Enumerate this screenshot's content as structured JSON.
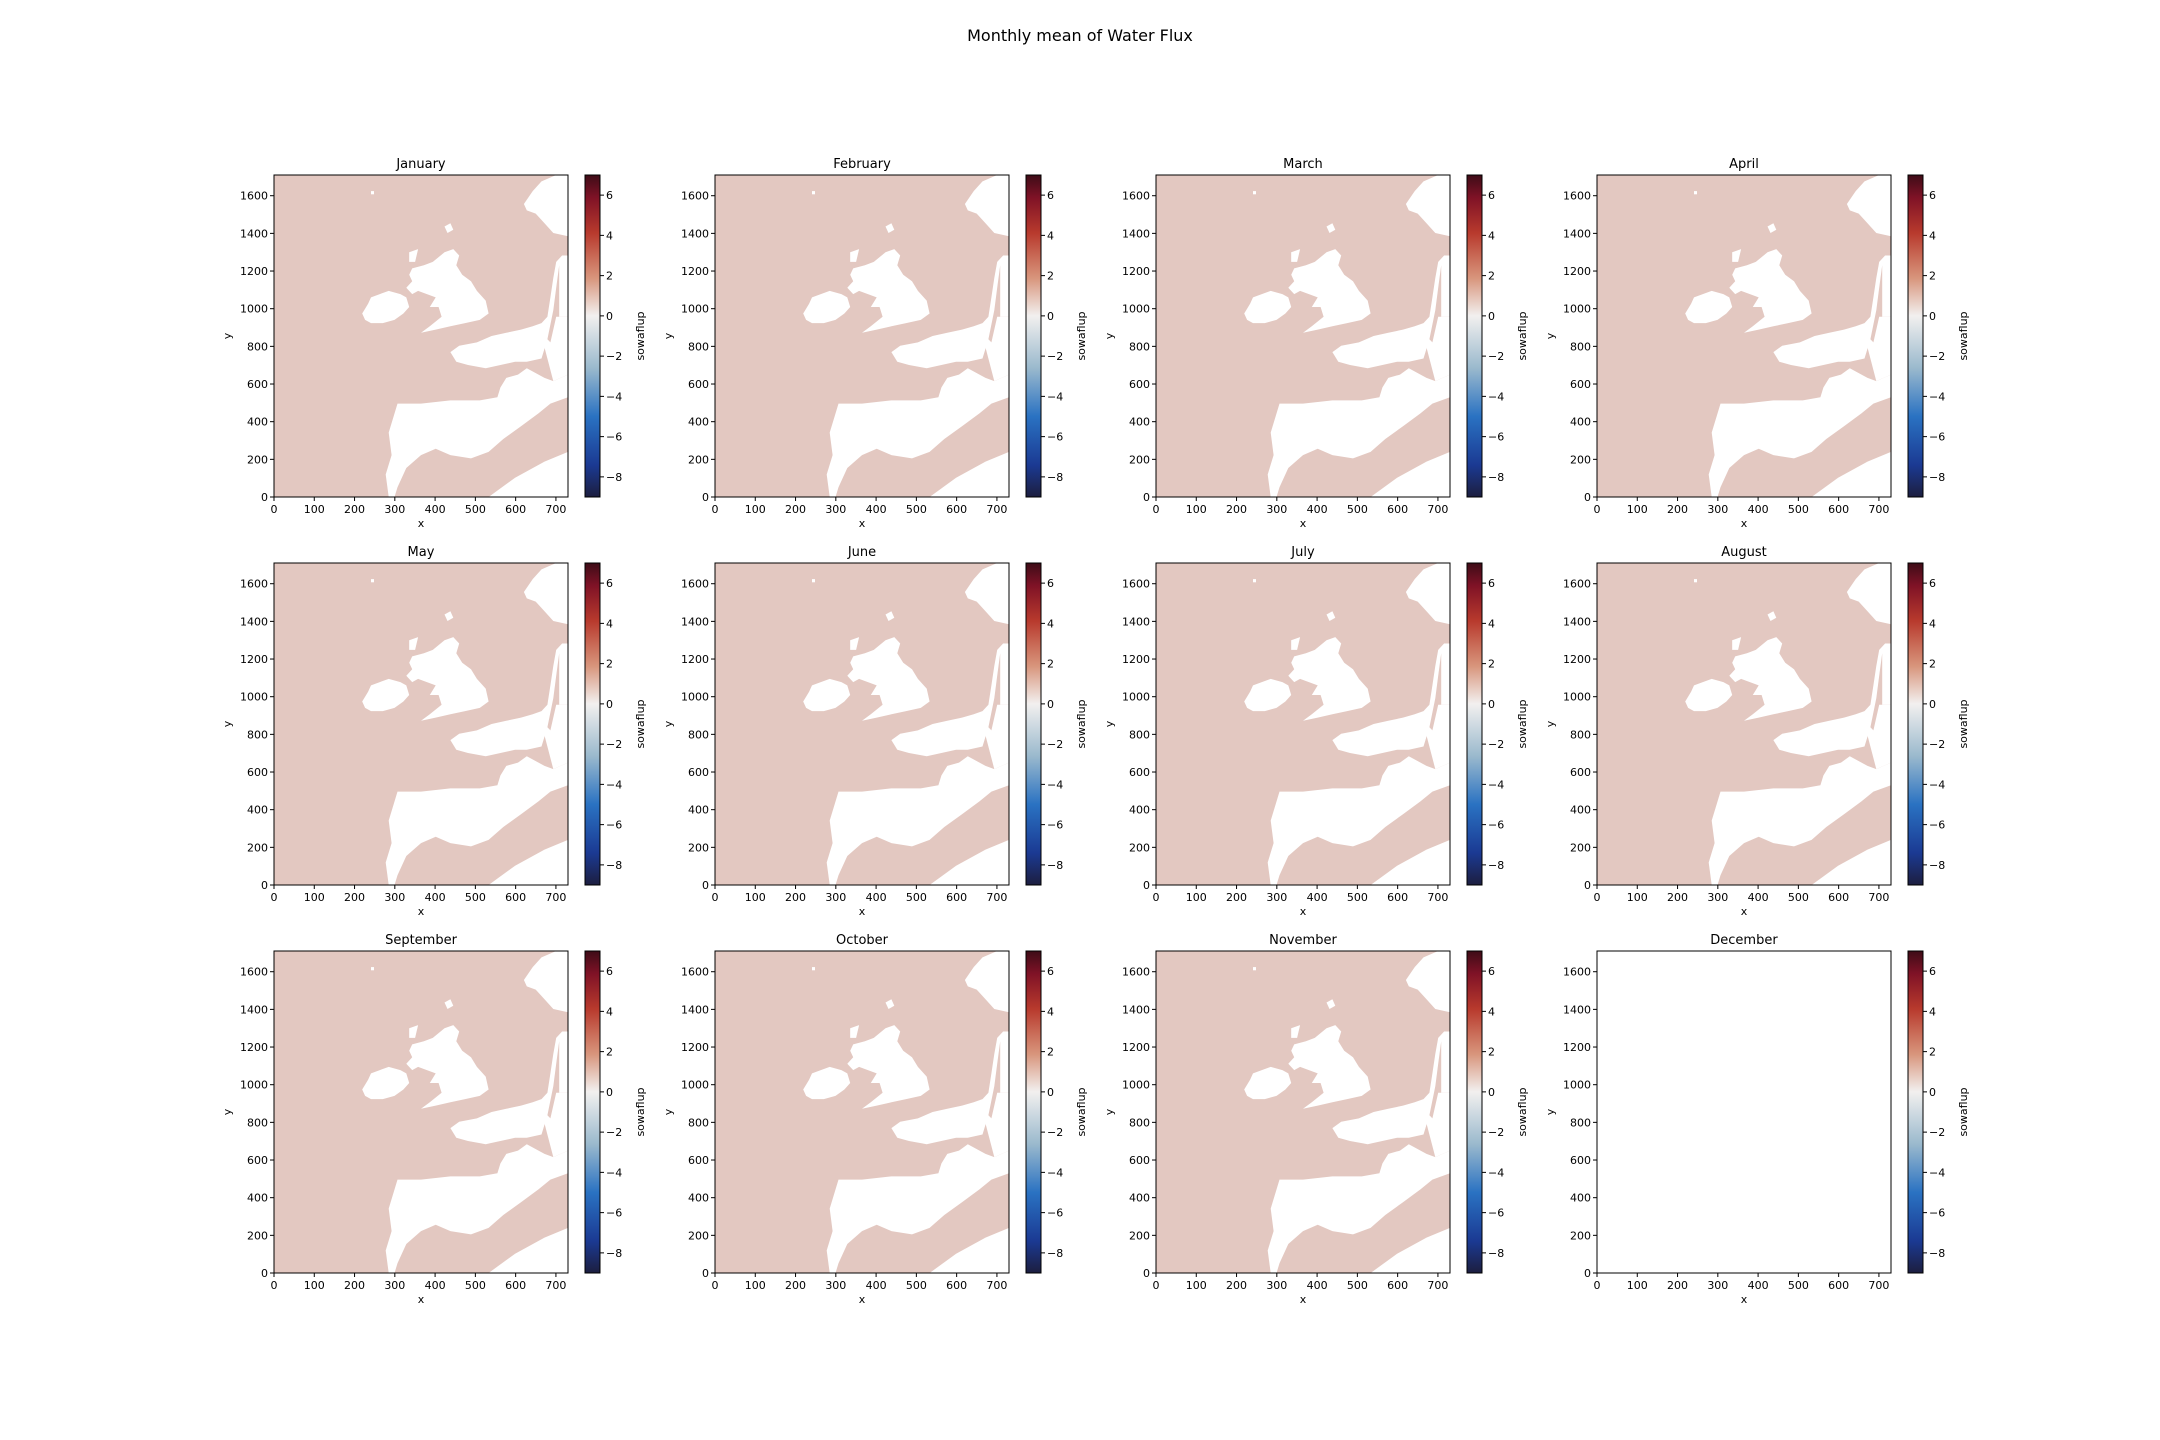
{
  "figure": {
    "title": "Monthly mean of Water Flux"
  },
  "chart_data": {
    "type": "heatmap",
    "variable": "sowaflup",
    "colormap": "balance (diverging navy-blue-white-red-maroon)",
    "colorbar": {
      "label": "sowaflup",
      "range": [
        -9,
        7
      ],
      "ticks": [
        6,
        4,
        2,
        0,
        -2,
        -4,
        -6,
        -8
      ],
      "tick_labels": [
        "6",
        "4",
        "2",
        "0",
        "−2",
        "−4",
        "−6",
        "−8"
      ]
    },
    "x_axis": {
      "label": "x",
      "range": [
        0,
        730
      ],
      "ticks": [
        0,
        100,
        200,
        300,
        400,
        500,
        600,
        700
      ],
      "tick_labels": [
        "0",
        "100",
        "200",
        "300",
        "400",
        "500",
        "600",
        "700"
      ]
    },
    "y_axis": {
      "label": "y",
      "range": [
        0,
        1710
      ],
      "ticks": [
        0,
        200,
        400,
        600,
        800,
        1000,
        1200,
        1400,
        1600
      ],
      "tick_labels": [
        "0",
        "200",
        "400",
        "600",
        "800",
        "1000",
        "1200",
        "1400",
        "1600"
      ]
    },
    "ocean_value_approx": 0.4,
    "ocean_color": "#e3c8c1",
    "land_color": "#ffffff",
    "panels": [
      {
        "title": "January",
        "has_data": true
      },
      {
        "title": "February",
        "has_data": true
      },
      {
        "title": "March",
        "has_data": true
      },
      {
        "title": "April",
        "has_data": true
      },
      {
        "title": "May",
        "has_data": true
      },
      {
        "title": "June",
        "has_data": true
      },
      {
        "title": "July",
        "has_data": true
      },
      {
        "title": "August",
        "has_data": true
      },
      {
        "title": "September",
        "has_data": true
      },
      {
        "title": "October",
        "has_data": true
      },
      {
        "title": "November",
        "has_data": true
      },
      {
        "title": "December",
        "has_data": false
      }
    ]
  }
}
